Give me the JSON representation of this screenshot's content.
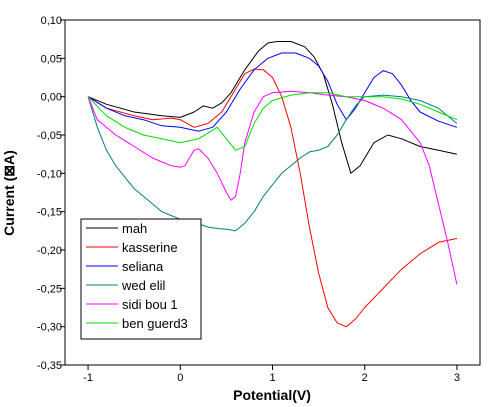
{
  "chart_data": {
    "type": "line",
    "xlabel": "Potential(V)",
    "ylabel": "Current (⊠A)",
    "xlim": [
      -1.25,
      3.25
    ],
    "ylim": [
      -0.35,
      0.1
    ],
    "x_ticks": [
      "-1",
      "0",
      "1",
      "2",
      "3"
    ],
    "x_tick_values": [
      -1,
      0,
      1,
      2,
      3
    ],
    "y_ticks": [
      "0,10",
      "0,05",
      "0,00",
      "-0,05",
      "-0,10",
      "-0,15",
      "-0,20",
      "-0,25",
      "-0,30",
      "-0,35"
    ],
    "y_tick_values": [
      0.1,
      0.05,
      0.0,
      -0.05,
      -0.1,
      -0.15,
      -0.2,
      -0.25,
      -0.3,
      -0.35
    ],
    "grid": false,
    "legend_position": "bottom-left",
    "series": [
      {
        "name": "mah",
        "color": "#000000",
        "x": [
          -1.0,
          -0.8,
          -0.5,
          -0.2,
          0.0,
          0.15,
          0.25,
          0.35,
          0.45,
          0.55,
          0.7,
          0.85,
          0.95,
          1.05,
          1.2,
          1.35,
          1.45,
          1.55,
          1.65,
          1.75,
          1.85,
          1.95,
          2.1,
          2.25,
          2.4,
          2.6,
          2.8,
          3.0
        ],
        "y": [
          0.0,
          -0.01,
          -0.02,
          -0.025,
          -0.027,
          -0.02,
          -0.012,
          -0.015,
          -0.008,
          0.005,
          0.035,
          0.06,
          0.07,
          0.072,
          0.072,
          0.065,
          0.052,
          0.03,
          -0.01,
          -0.06,
          -0.1,
          -0.09,
          -0.06,
          -0.05,
          -0.055,
          -0.065,
          -0.07,
          -0.075
        ]
      },
      {
        "name": "kasserine",
        "color": "#ff0000",
        "x": [
          -1.0,
          -0.8,
          -0.5,
          -0.3,
          -0.1,
          0.0,
          0.15,
          0.3,
          0.45,
          0.6,
          0.7,
          0.8,
          0.9,
          1.0,
          1.1,
          1.2,
          1.3,
          1.4,
          1.5,
          1.6,
          1.7,
          1.8,
          1.9,
          2.0,
          2.2,
          2.4,
          2.6,
          2.8,
          3.0
        ],
        "y": [
          0.0,
          -0.015,
          -0.025,
          -0.03,
          -0.028,
          -0.03,
          -0.04,
          -0.035,
          -0.02,
          0.01,
          0.03,
          0.036,
          0.035,
          0.025,
          0.0,
          -0.04,
          -0.1,
          -0.17,
          -0.23,
          -0.275,
          -0.295,
          -0.3,
          -0.29,
          -0.275,
          -0.25,
          -0.225,
          -0.205,
          -0.19,
          -0.185
        ]
      },
      {
        "name": "seliana",
        "color": "#0000ff",
        "x": [
          -1.0,
          -0.8,
          -0.6,
          -0.4,
          -0.2,
          0.0,
          0.2,
          0.35,
          0.5,
          0.65,
          0.8,
          0.95,
          1.1,
          1.25,
          1.4,
          1.5,
          1.6,
          1.7,
          1.8,
          1.9,
          2.0,
          2.1,
          2.2,
          2.3,
          2.4,
          2.5,
          2.6,
          2.8,
          3.0
        ],
        "y": [
          0.0,
          -0.015,
          -0.025,
          -0.03,
          -0.038,
          -0.04,
          -0.045,
          -0.04,
          -0.02,
          0.01,
          0.035,
          0.05,
          0.057,
          0.057,
          0.05,
          0.04,
          0.02,
          -0.01,
          -0.03,
          -0.015,
          0.005,
          0.025,
          0.034,
          0.03,
          0.015,
          -0.005,
          -0.02,
          -0.032,
          -0.04
        ]
      },
      {
        "name": "wed elil",
        "color": "#008080",
        "x": [
          -1.0,
          -0.9,
          -0.8,
          -0.7,
          -0.6,
          -0.5,
          -0.4,
          -0.3,
          -0.2,
          -0.1,
          0.0,
          0.1,
          0.2,
          0.3,
          0.4,
          0.5,
          0.6,
          0.7,
          0.8,
          0.9,
          1.0,
          1.1,
          1.2,
          1.3,
          1.4,
          1.5,
          1.6,
          1.7,
          1.8,
          1.9,
          2.0,
          2.2,
          2.4,
          2.6,
          2.8,
          3.0
        ],
        "y": [
          0.0,
          -0.04,
          -0.07,
          -0.09,
          -0.105,
          -0.12,
          -0.13,
          -0.14,
          -0.15,
          -0.155,
          -0.16,
          -0.163,
          -0.166,
          -0.17,
          -0.172,
          -0.173,
          -0.175,
          -0.165,
          -0.15,
          -0.13,
          -0.115,
          -0.1,
          -0.09,
          -0.08,
          -0.072,
          -0.07,
          -0.065,
          -0.05,
          -0.03,
          -0.012,
          0.0,
          0.002,
          0.0,
          -0.005,
          -0.015,
          -0.035
        ]
      },
      {
        "name": "sidi bou 1",
        "color": "#ff00ff",
        "x": [
          -1.0,
          -0.9,
          -0.7,
          -0.5,
          -0.3,
          -0.1,
          0.0,
          0.05,
          0.1,
          0.15,
          0.2,
          0.3,
          0.4,
          0.5,
          0.55,
          0.6,
          0.65,
          0.7,
          0.8,
          0.9,
          1.0,
          1.2,
          1.4,
          1.6,
          1.8,
          2.0,
          2.2,
          2.4,
          2.6,
          2.7,
          2.8,
          2.9,
          3.0
        ],
        "y": [
          0.0,
          -0.03,
          -0.05,
          -0.065,
          -0.08,
          -0.09,
          -0.092,
          -0.09,
          -0.08,
          -0.07,
          -0.068,
          -0.08,
          -0.1,
          -0.125,
          -0.135,
          -0.13,
          -0.1,
          -0.06,
          -0.02,
          0.0,
          0.005,
          0.007,
          0.005,
          0.002,
          0.0,
          -0.005,
          -0.015,
          -0.03,
          -0.06,
          -0.09,
          -0.14,
          -0.19,
          -0.245
        ]
      },
      {
        "name": "ben guerd3",
        "color": "#00dd00",
        "x": [
          -1.0,
          -0.8,
          -0.6,
          -0.4,
          -0.2,
          0.0,
          0.2,
          0.4,
          0.5,
          0.6,
          0.7,
          0.8,
          0.9,
          1.0,
          1.2,
          1.4,
          1.6,
          1.8,
          2.0,
          2.2,
          2.4,
          2.6,
          2.8,
          3.0
        ],
        "y": [
          0.0,
          -0.025,
          -0.04,
          -0.05,
          -0.055,
          -0.06,
          -0.055,
          -0.04,
          -0.055,
          -0.07,
          -0.065,
          -0.035,
          -0.015,
          -0.005,
          0.002,
          0.005,
          0.005,
          0.0,
          0.0,
          0.0,
          -0.003,
          -0.01,
          -0.02,
          -0.03
        ]
      }
    ]
  }
}
